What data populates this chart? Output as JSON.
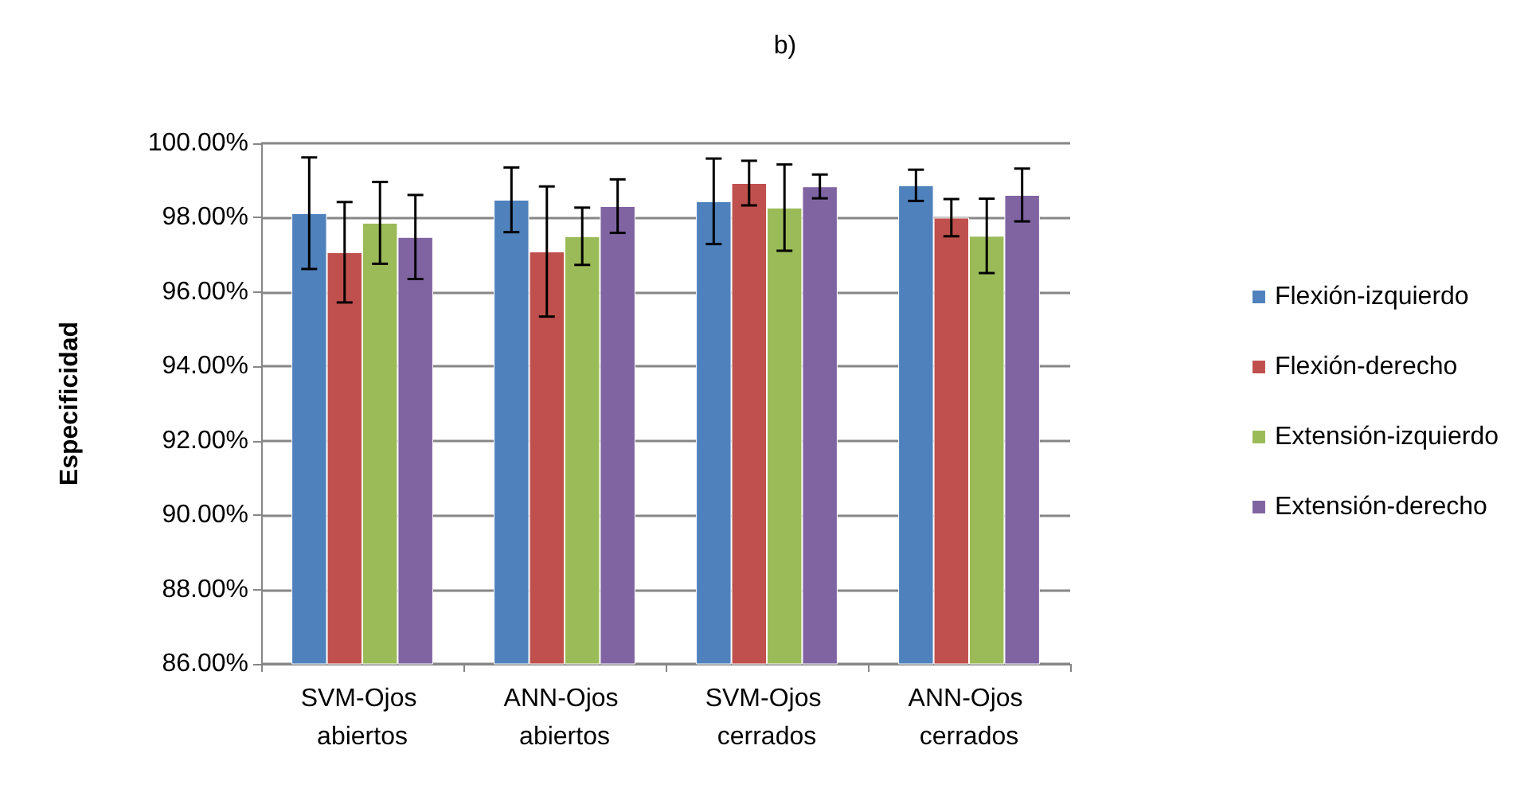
{
  "chart_data": {
    "type": "bar",
    "title": "b)",
    "ylabel": "Especificidad",
    "categories": [
      "SVM-Ojos abiertos",
      "ANN-Ojos abiertos",
      "SVM-Ojos cerrados",
      "ANN-Ojos cerrados"
    ],
    "series": [
      {
        "name": "Flexión-izquierdo",
        "color": "#4f81bd",
        "values": [
          98.12,
          98.48,
          98.44,
          98.87
        ],
        "errors": [
          1.5,
          0.87,
          1.15,
          0.42
        ]
      },
      {
        "name": "Flexión-derecho",
        "color": "#c0504d",
        "values": [
          97.07,
          97.09,
          98.93,
          98.0
        ],
        "errors": [
          1.35,
          1.75,
          0.6,
          0.5
        ]
      },
      {
        "name": "Extensión-izquierdo",
        "color": "#9bbb59",
        "values": [
          97.86,
          97.5,
          98.27,
          97.51
        ],
        "errors": [
          1.1,
          0.77,
          1.16,
          1.0
        ]
      },
      {
        "name": "Extensión-derecho",
        "color": "#8064a2",
        "values": [
          97.48,
          98.31,
          98.84,
          98.61
        ],
        "errors": [
          1.13,
          0.72,
          0.32,
          0.71
        ]
      }
    ],
    "ylim": [
      86,
      100
    ],
    "yticks": [
      {
        "value": 86,
        "label": "86.00%"
      },
      {
        "value": 88,
        "label": "88.00%"
      },
      {
        "value": 90,
        "label": "90.00%"
      },
      {
        "value": 92,
        "label": "92.00%"
      },
      {
        "value": 94,
        "label": "94.00%"
      },
      {
        "value": 96,
        "label": "96.00%"
      },
      {
        "value": 98,
        "label": "98.00%"
      },
      {
        "value": 100,
        "label": "100.00%"
      }
    ],
    "grid": "y",
    "legend": "right"
  }
}
